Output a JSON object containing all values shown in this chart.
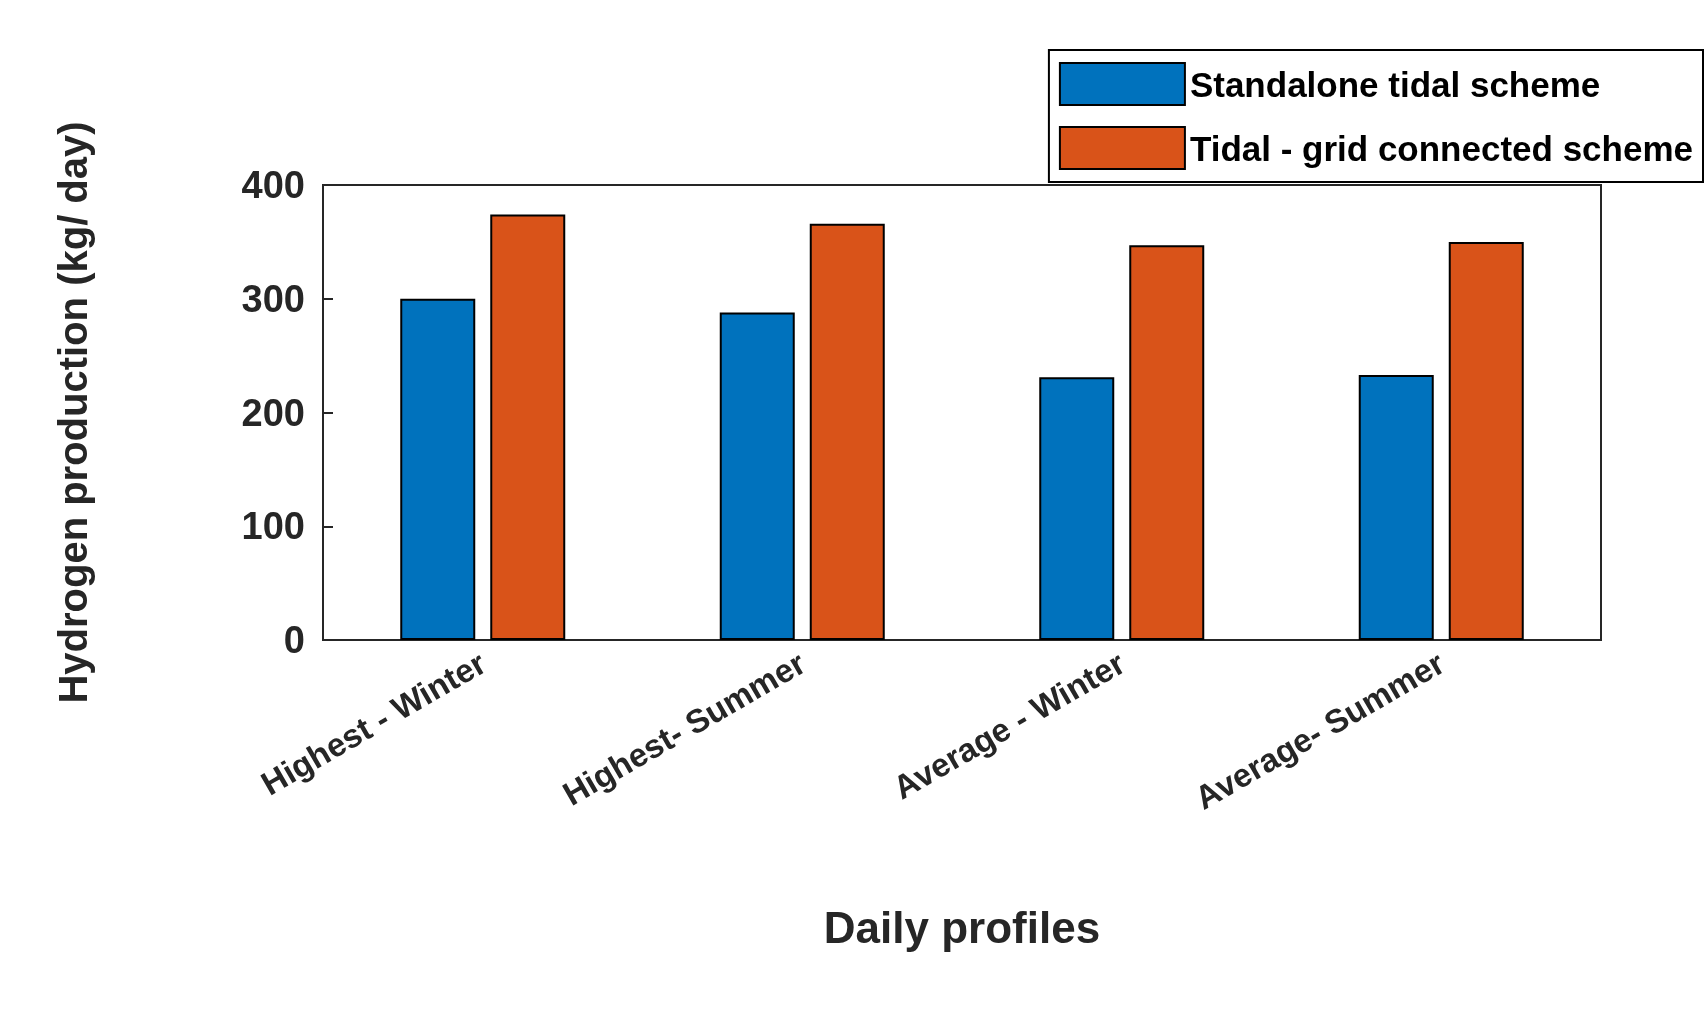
{
  "chart_data": {
    "type": "bar",
    "xlabel": "Daily profiles",
    "ylabel": "Hydrogen production (kg/ day)",
    "categories": [
      "Highest - Winter",
      "Highest- Summer",
      "Average - Winter",
      "Average- Summer"
    ],
    "series": [
      {
        "name": "Standalone tidal scheme",
        "color": "#0072bd",
        "values": [
          300,
          288,
          231,
          233
        ]
      },
      {
        "name": "Tidal - grid connected scheme",
        "color": "#d95319",
        "values": [
          374,
          366,
          347,
          350
        ]
      }
    ],
    "ylim": [
      0,
      400
    ],
    "yticks": [
      0,
      100,
      200,
      300,
      400
    ],
    "legend": "top right"
  }
}
